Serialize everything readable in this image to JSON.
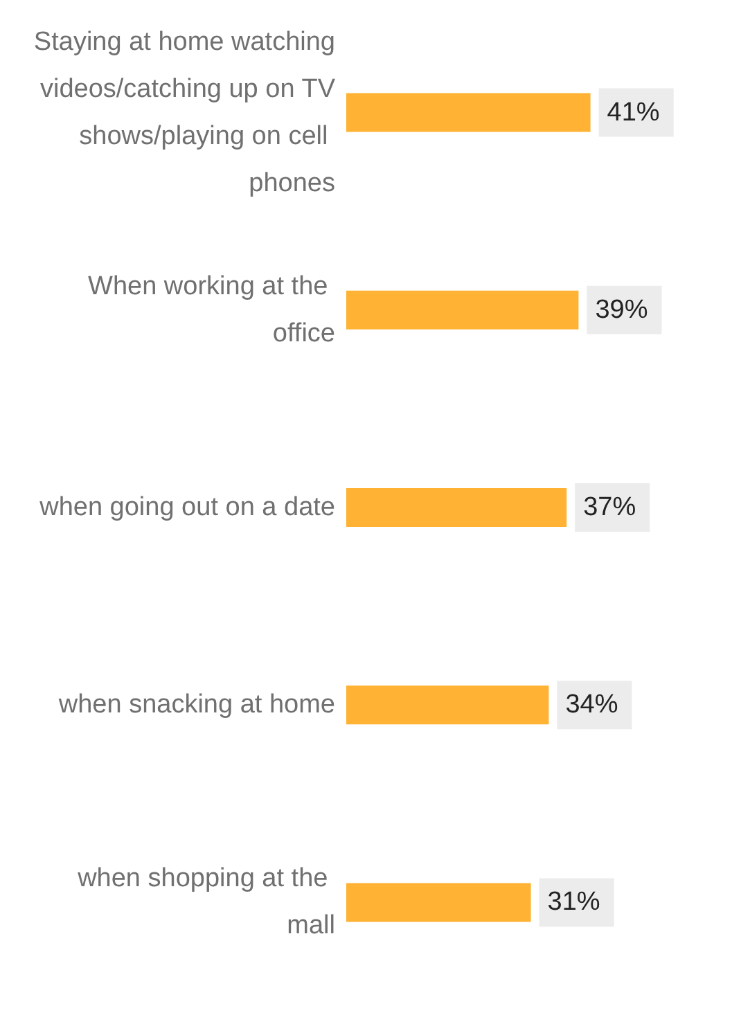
{
  "chart_data": {
    "type": "bar",
    "orientation": "horizontal",
    "categories": [
      "Staying at home watching videos/catching up on TV shows/playing on cell phones",
      "When working at the office",
      "when going out on a date",
      "when snacking at home",
      "when shopping at the mall"
    ],
    "values": [
      41,
      39,
      37,
      34,
      31
    ],
    "color": "#ffb233",
    "value_labels": [
      "41%",
      "39%",
      "37%",
      "34%",
      "31%"
    ],
    "grid": false
  }
}
